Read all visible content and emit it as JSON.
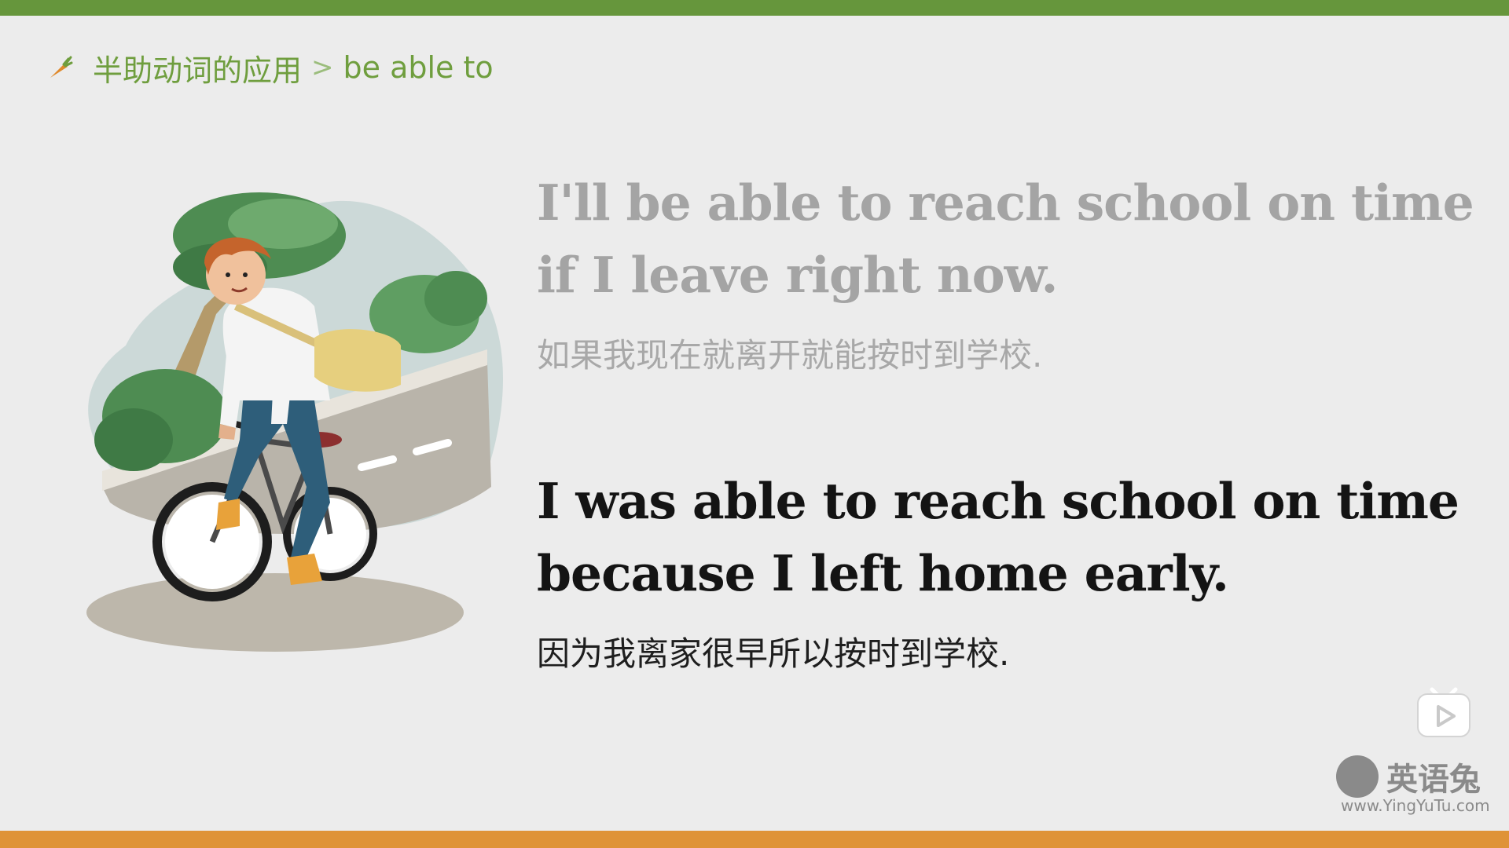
{
  "breadcrumb": {
    "section": "半助动词的应用",
    "separator": ">",
    "topic": "be able to"
  },
  "examples": [
    {
      "english_line1": "I'll be able to reach school on time",
      "english_line2": "if I leave right now.",
      "chinese": "如果我现在就离开就能按时到学校."
    },
    {
      "english_line1": "I was able to reach school on time",
      "english_line2": "because I left home early.",
      "chinese": "因为我离家很早所以按时到学校."
    }
  ],
  "watermark": {
    "brand": "英语兔",
    "site": "www.YingYuTu.com"
  },
  "colors": {
    "top_bar": "#66963c",
    "bottom_bar": "#df9337",
    "accent_text": "#6f9e3e",
    "dimmed_text": "#a4a4a4",
    "active_text": "#141414"
  },
  "icons": {
    "breadcrumb": "carrot-icon",
    "player": "play-icon",
    "watermark": "rabbit-logo-icon"
  }
}
